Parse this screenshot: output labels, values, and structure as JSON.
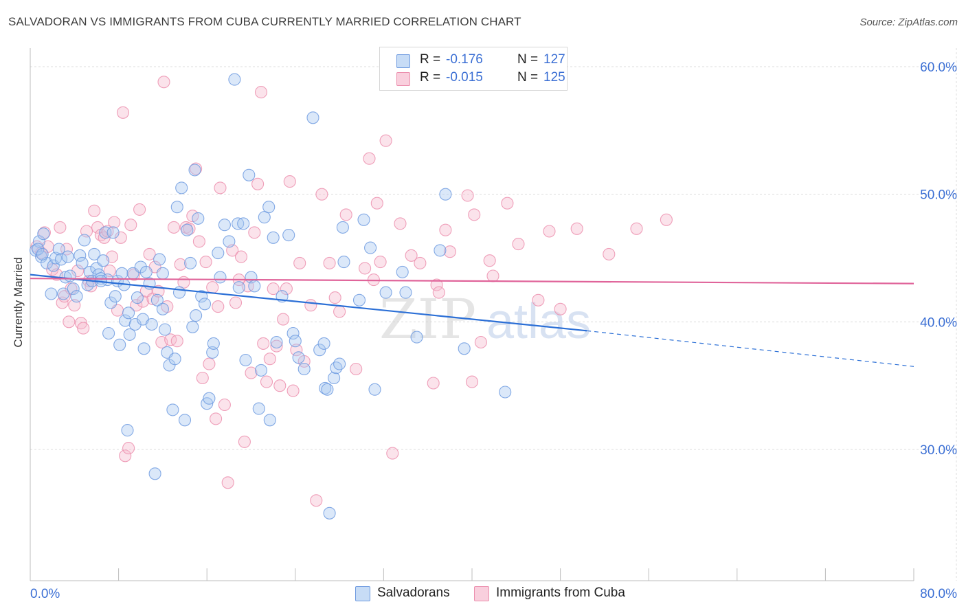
{
  "header": {
    "title": "SALVADORAN VS IMMIGRANTS FROM CUBA CURRENTLY MARRIED CORRELATION CHART",
    "source": "Source: ZipAtlas.com"
  },
  "legend": {
    "r_label": "R =",
    "n_label": "N =",
    "series": [
      {
        "r": "-0.176",
        "n": "127"
      },
      {
        "r": "-0.015",
        "n": "125"
      }
    ]
  },
  "bottom_legend": [
    "Salvadorans",
    "Immigrants from Cuba"
  ],
  "watermark": "ZIPatlas",
  "colors": {
    "salvadoran_fill": "#a9c8f0",
    "salvadoran_stroke": "#6f9be0",
    "salvadoran_line": "#2b6fd6",
    "cuba_fill": "#f6bccf",
    "cuba_stroke": "#ec8fae",
    "cuba_line": "#e0649a",
    "tick_label": "#3b6fd4",
    "grid": "#dcdcdc"
  },
  "chart_data": {
    "type": "scatter",
    "title": "SALVADORAN VS IMMIGRANTS FROM CUBA CURRENTLY MARRIED CORRELATION CHART",
    "xlabel": "",
    "ylabel": "Currently Married",
    "xlim": [
      0,
      80
    ],
    "ylim": [
      20,
      62
    ],
    "x_tick_labels": [
      "0.0%",
      "80.0%"
    ],
    "y_ticks": [
      30,
      40,
      50,
      60
    ],
    "y_tick_labels": [
      "30.0%",
      "40.0%",
      "50.0%",
      "60.0%"
    ],
    "grid": true,
    "legend_position": "top-center",
    "series": [
      {
        "name": "Salvadorans",
        "r": -0.176,
        "n": 127,
        "trend": {
          "x0": 0,
          "y0": 43.7,
          "x1": 50.4,
          "y1": 39.3,
          "dashed_to_x": 80,
          "dashed_to_y": 36.5
        },
        "points": [
          [
            0.5,
            45.6
          ],
          [
            0.8,
            46.3
          ],
          [
            1.2,
            46.9
          ],
          [
            1.0,
            45.1
          ],
          [
            1.5,
            44.6
          ],
          [
            1.9,
            42.2
          ],
          [
            2.1,
            44.4
          ],
          [
            2.3,
            45.0
          ],
          [
            2.6,
            45.7
          ],
          [
            2.8,
            44.9
          ],
          [
            3.0,
            42.2
          ],
          [
            3.2,
            43.5
          ],
          [
            3.4,
            45.1
          ],
          [
            3.6,
            43.6
          ],
          [
            3.9,
            42.6
          ],
          [
            4.2,
            42.0
          ],
          [
            4.5,
            45.2
          ],
          [
            4.7,
            44.6
          ],
          [
            4.9,
            46.4
          ],
          [
            5.2,
            42.9
          ],
          [
            5.4,
            43.9
          ],
          [
            5.6,
            43.2
          ],
          [
            5.8,
            45.3
          ],
          [
            6.0,
            44.2
          ],
          [
            6.2,
            43.7
          ],
          [
            6.4,
            43.4
          ],
          [
            6.6,
            44.8
          ],
          [
            6.8,
            47.0
          ],
          [
            7.0,
            43.3
          ],
          [
            7.1,
            39.1
          ],
          [
            7.3,
            41.5
          ],
          [
            7.5,
            47.0
          ],
          [
            7.7,
            42.0
          ],
          [
            7.9,
            43.2
          ],
          [
            8.1,
            38.2
          ],
          [
            8.3,
            43.8
          ],
          [
            8.5,
            42.9
          ],
          [
            8.6,
            40.1
          ],
          [
            8.9,
            40.7
          ],
          [
            9.0,
            39.0
          ],
          [
            9.3,
            43.8
          ],
          [
            9.5,
            39.8
          ],
          [
            9.7,
            41.9
          ],
          [
            10.0,
            44.3
          ],
          [
            10.2,
            40.2
          ],
          [
            10.3,
            37.9
          ],
          [
            10.5,
            43.9
          ],
          [
            10.8,
            43.0
          ],
          [
            11.0,
            39.8
          ],
          [
            11.3,
            28.1
          ],
          [
            11.5,
            41.7
          ],
          [
            11.7,
            44.9
          ],
          [
            12.0,
            43.8
          ],
          [
            12.2,
            39.4
          ],
          [
            12.4,
            37.6
          ],
          [
            12.6,
            36.6
          ],
          [
            12.9,
            33.1
          ],
          [
            13.1,
            37.1
          ],
          [
            13.3,
            49.0
          ],
          [
            13.5,
            42.3
          ],
          [
            13.7,
            50.5
          ],
          [
            14.0,
            32.3
          ],
          [
            14.2,
            47.2
          ],
          [
            14.5,
            44.6
          ],
          [
            14.7,
            39.6
          ],
          [
            14.9,
            51.9
          ],
          [
            15.2,
            48.1
          ],
          [
            15.5,
            42.0
          ],
          [
            15.8,
            41.4
          ],
          [
            16.0,
            33.6
          ],
          [
            16.2,
            34.0
          ],
          [
            16.5,
            37.6
          ],
          [
            16.6,
            38.3
          ],
          [
            17.0,
            45.4
          ],
          [
            17.2,
            43.5
          ],
          [
            17.6,
            47.6
          ],
          [
            18.0,
            46.3
          ],
          [
            18.5,
            59.0
          ],
          [
            18.8,
            47.7
          ],
          [
            18.9,
            42.7
          ],
          [
            19.3,
            47.7
          ],
          [
            19.5,
            37.0
          ],
          [
            19.8,
            51.5
          ],
          [
            20.0,
            43.5
          ],
          [
            20.3,
            42.8
          ],
          [
            20.7,
            33.2
          ],
          [
            20.9,
            36.2
          ],
          [
            21.2,
            48.2
          ],
          [
            21.6,
            49.0
          ],
          [
            21.7,
            32.3
          ],
          [
            22.0,
            46.6
          ],
          [
            22.3,
            38.4
          ],
          [
            22.8,
            42.0
          ],
          [
            23.4,
            46.8
          ],
          [
            23.8,
            39.1
          ],
          [
            24.0,
            38.5
          ],
          [
            24.3,
            37.2
          ],
          [
            24.8,
            36.3
          ],
          [
            25.6,
            56.0
          ],
          [
            26.2,
            37.8
          ],
          [
            26.6,
            38.3
          ],
          [
            26.7,
            34.8
          ],
          [
            26.9,
            34.7
          ],
          [
            27.1,
            25.0
          ],
          [
            27.5,
            35.6
          ],
          [
            27.7,
            36.4
          ],
          [
            28.0,
            36.7
          ],
          [
            28.3,
            47.4
          ],
          [
            28.4,
            44.7
          ],
          [
            29.8,
            41.7
          ],
          [
            30.2,
            48.0
          ],
          [
            30.8,
            45.8
          ],
          [
            31.2,
            34.7
          ],
          [
            32.2,
            42.3
          ],
          [
            33.7,
            43.9
          ],
          [
            34.0,
            42.3
          ],
          [
            35.0,
            38.8
          ],
          [
            37.1,
            45.6
          ],
          [
            37.6,
            50.0
          ],
          [
            39.3,
            37.9
          ],
          [
            43.0,
            34.5
          ],
          [
            8.8,
            31.5
          ],
          [
            0.7,
            45.7
          ],
          [
            1.1,
            45.3
          ],
          [
            6.4,
            43.2
          ],
          [
            15.0,
            40.5
          ],
          [
            12.0,
            41.0
          ]
        ]
      },
      {
        "name": "Immigrants from Cuba",
        "r": -0.015,
        "n": 125,
        "trend": {
          "x0": 0,
          "y0": 43.4,
          "x1": 80,
          "y1": 43.0
        },
        "points": [
          [
            0.6,
            45.9
          ],
          [
            1.0,
            45.4
          ],
          [
            1.3,
            47.0
          ],
          [
            1.6,
            45.9
          ],
          [
            2.0,
            44.1
          ],
          [
            2.4,
            43.7
          ],
          [
            2.7,
            47.4
          ],
          [
            2.9,
            41.5
          ],
          [
            3.1,
            42.0
          ],
          [
            3.3,
            45.7
          ],
          [
            3.5,
            40.0
          ],
          [
            3.7,
            42.6
          ],
          [
            4.0,
            41.3
          ],
          [
            4.3,
            44.0
          ],
          [
            4.6,
            39.9
          ],
          [
            4.8,
            39.5
          ],
          [
            5.1,
            47.1
          ],
          [
            5.3,
            43.2
          ],
          [
            5.5,
            42.8
          ],
          [
            5.8,
            48.7
          ],
          [
            6.1,
            47.4
          ],
          [
            6.4,
            46.8
          ],
          [
            6.7,
            46.6
          ],
          [
            7.0,
            47.1
          ],
          [
            7.2,
            44.0
          ],
          [
            7.4,
            45.1
          ],
          [
            7.6,
            47.8
          ],
          [
            7.9,
            40.9
          ],
          [
            8.2,
            46.6
          ],
          [
            8.4,
            56.4
          ],
          [
            8.6,
            29.5
          ],
          [
            8.9,
            30.1
          ],
          [
            9.1,
            47.6
          ],
          [
            9.4,
            43.7
          ],
          [
            9.6,
            41.3
          ],
          [
            9.9,
            48.8
          ],
          [
            10.2,
            41.6
          ],
          [
            10.5,
            42.4
          ],
          [
            10.8,
            45.3
          ],
          [
            11.1,
            41.8
          ],
          [
            11.3,
            44.3
          ],
          [
            11.6,
            42.4
          ],
          [
            11.9,
            38.4
          ],
          [
            12.1,
            58.8
          ],
          [
            12.4,
            41.2
          ],
          [
            12.7,
            38.6
          ],
          [
            13.0,
            47.4
          ],
          [
            13.3,
            38.5
          ],
          [
            13.6,
            44.5
          ],
          [
            13.9,
            43.1
          ],
          [
            14.1,
            47.4
          ],
          [
            14.4,
            47.3
          ],
          [
            14.7,
            48.3
          ],
          [
            15.0,
            52.0
          ],
          [
            15.3,
            46.3
          ],
          [
            15.6,
            35.6
          ],
          [
            15.9,
            44.7
          ],
          [
            16.2,
            36.7
          ],
          [
            16.5,
            42.7
          ],
          [
            16.8,
            32.4
          ],
          [
            17.0,
            41.2
          ],
          [
            17.2,
            50.5
          ],
          [
            17.6,
            33.5
          ],
          [
            17.9,
            27.4
          ],
          [
            18.3,
            45.6
          ],
          [
            18.6,
            41.5
          ],
          [
            18.9,
            43.3
          ],
          [
            19.1,
            45.1
          ],
          [
            19.4,
            30.6
          ],
          [
            19.7,
            42.8
          ],
          [
            20.0,
            36.0
          ],
          [
            20.3,
            47.0
          ],
          [
            20.6,
            50.8
          ],
          [
            20.9,
            58.0
          ],
          [
            21.1,
            38.3
          ],
          [
            21.4,
            35.3
          ],
          [
            21.7,
            37.1
          ],
          [
            22.0,
            42.6
          ],
          [
            22.3,
            38.1
          ],
          [
            22.6,
            35.0
          ],
          [
            22.9,
            40.2
          ],
          [
            23.2,
            42.6
          ],
          [
            23.5,
            51.0
          ],
          [
            23.8,
            34.6
          ],
          [
            24.1,
            37.8
          ],
          [
            24.4,
            44.6
          ],
          [
            24.8,
            36.9
          ],
          [
            25.4,
            41.3
          ],
          [
            25.9,
            26.0
          ],
          [
            26.4,
            50.0
          ],
          [
            27.1,
            44.6
          ],
          [
            27.6,
            41.9
          ],
          [
            28.0,
            40.8
          ],
          [
            28.6,
            48.4
          ],
          [
            29.5,
            36.3
          ],
          [
            30.3,
            44.2
          ],
          [
            30.7,
            52.8
          ],
          [
            31.1,
            43.3
          ],
          [
            31.4,
            49.3
          ],
          [
            31.7,
            44.7
          ],
          [
            32.2,
            54.2
          ],
          [
            32.8,
            29.7
          ],
          [
            33.5,
            47.7
          ],
          [
            34.5,
            45.2
          ],
          [
            35.3,
            44.6
          ],
          [
            36.5,
            35.2
          ],
          [
            36.8,
            42.9
          ],
          [
            37.0,
            42.3
          ],
          [
            37.6,
            47.2
          ],
          [
            38.0,
            45.5
          ],
          [
            39.6,
            49.9
          ],
          [
            40.0,
            35.3
          ],
          [
            40.2,
            48.4
          ],
          [
            40.8,
            38.4
          ],
          [
            41.6,
            44.8
          ],
          [
            41.9,
            43.6
          ],
          [
            43.2,
            49.3
          ],
          [
            44.2,
            46.1
          ],
          [
            46.0,
            41.7
          ],
          [
            47.0,
            47.1
          ],
          [
            48.0,
            41.0
          ],
          [
            49.5,
            47.3
          ],
          [
            52.4,
            45.3
          ],
          [
            54.9,
            47.3
          ],
          [
            57.6,
            48.0
          ]
        ]
      }
    ]
  }
}
